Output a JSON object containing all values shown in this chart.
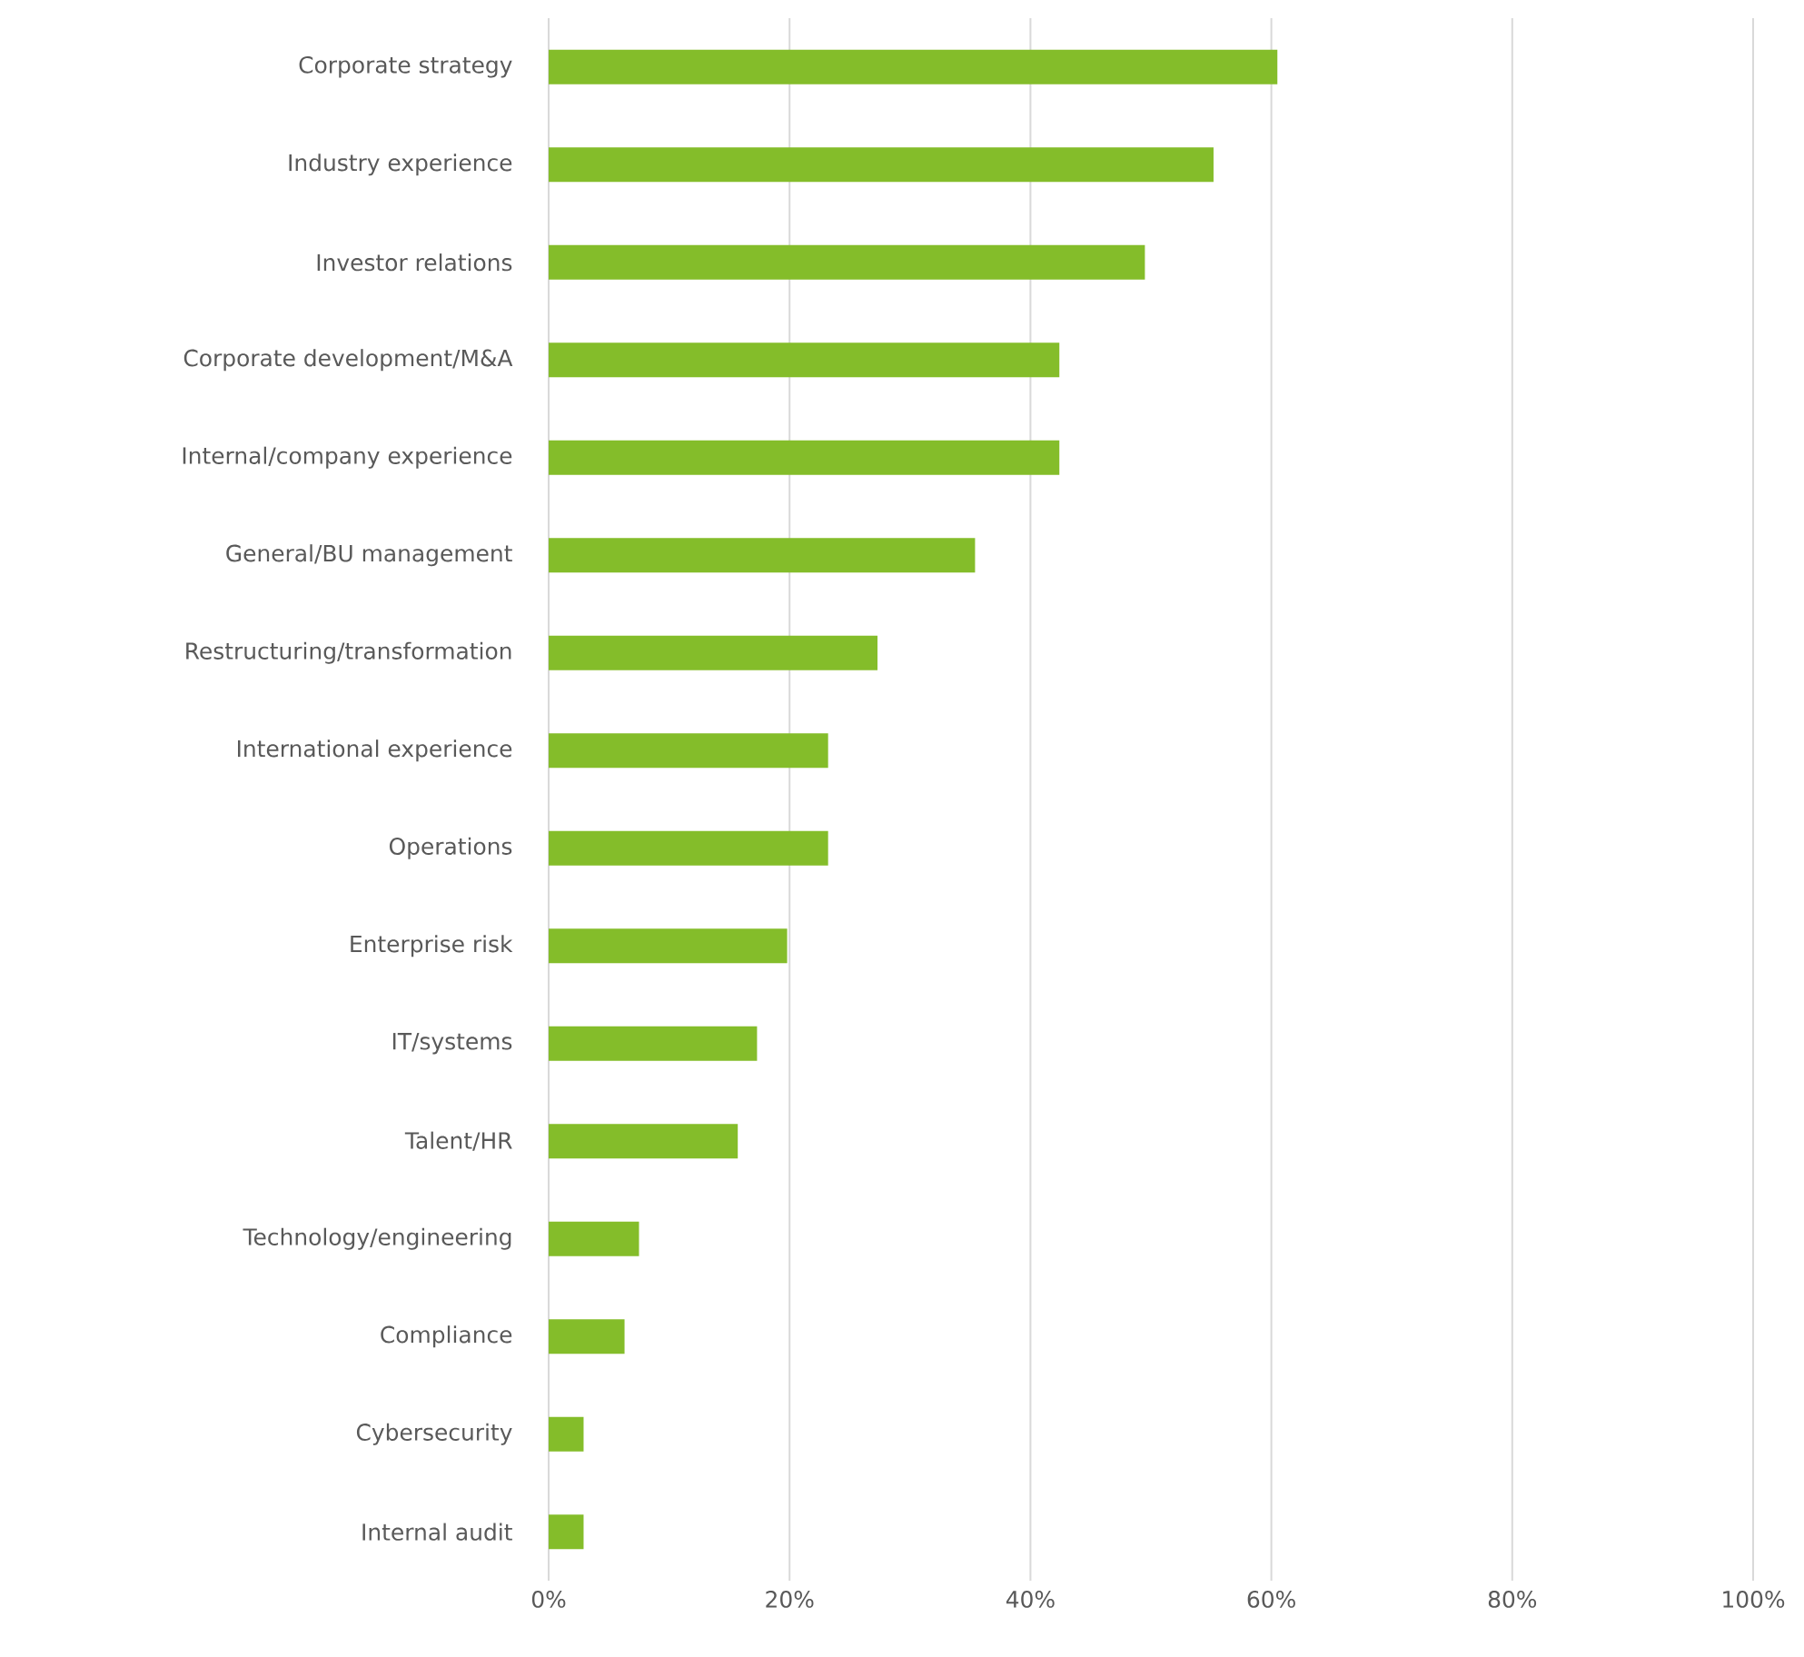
{
  "chart_data": {
    "type": "bar",
    "orientation": "horizontal",
    "categories": [
      "Corporate strategy",
      "Industry experience",
      "Investor relations",
      "Corporate development/M&A",
      "Internal/company experience",
      "General/BU management",
      "Restructuring/transformation",
      "International experience",
      "Operations",
      "Enterprise risk",
      "IT/systems",
      "Talent/HR",
      "Technology/engineering",
      "Compliance",
      "Cybersecurity",
      "Internal audit"
    ],
    "values": [
      60.5,
      55.2,
      49.5,
      42.4,
      42.4,
      35.4,
      27.3,
      23.2,
      23.2,
      19.8,
      17.3,
      15.7,
      7.5,
      6.3,
      2.9,
      2.9
    ],
    "color": "#84bd2a",
    "xlim": [
      0,
      100
    ],
    "xticks": [
      {
        "value": 0,
        "label": "0%"
      },
      {
        "value": 20,
        "label": "20%"
      },
      {
        "value": 40,
        "label": "40%"
      },
      {
        "value": 60,
        "label": "60%"
      },
      {
        "value": 80,
        "label": "80%"
      },
      {
        "value": 100,
        "label": "100%"
      }
    ],
    "grid": "x"
  }
}
